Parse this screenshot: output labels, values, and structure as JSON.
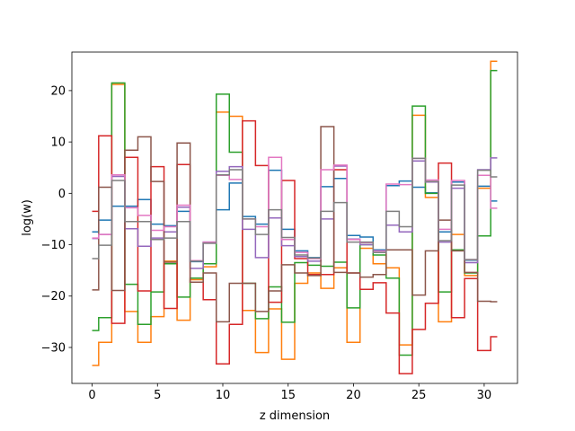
{
  "chart_data": {
    "type": "line",
    "style": "step",
    "xlabel": "z dimension",
    "ylabel": "log(w)",
    "xlim": [
      -1.55,
      32.55
    ],
    "ylim": [
      -37.0,
      27.5
    ],
    "xticks": [
      0,
      5,
      10,
      15,
      20,
      25,
      30
    ],
    "yticks": [
      -30,
      -20,
      -10,
      0,
      10,
      20
    ],
    "grid": false,
    "legend": "none",
    "x": [
      0,
      1,
      2,
      3,
      4,
      5,
      6,
      7,
      8,
      9,
      10,
      11,
      12,
      13,
      14,
      15,
      16,
      17,
      18,
      19,
      20,
      21,
      22,
      23,
      24,
      25,
      26,
      27,
      28,
      29,
      30,
      31
    ],
    "series": [
      {
        "color": "#1f77b4",
        "values": [
          -7.5,
          -5.2,
          -2.5,
          -2.5,
          -1.2,
          -6.0,
          -6.3,
          -3.5,
          -13.3,
          -9.5,
          -3.2,
          2.0,
          -4.5,
          -6.0,
          4.5,
          -7.0,
          -11.2,
          -12.5,
          1.3,
          2.9,
          -8.2,
          -8.5,
          -11.0,
          1.5,
          2.4,
          1.2,
          0.1,
          -7.5,
          2.2,
          -13.0,
          1.4,
          -1.5
        ]
      },
      {
        "color": "#ff7f0e",
        "values": [
          -33.5,
          -29.0,
          21.2,
          -23.0,
          -29.0,
          -24.0,
          -13.2,
          -24.7,
          -16.8,
          -14.3,
          15.8,
          15.0,
          -22.8,
          -31.0,
          -22.5,
          -32.3,
          -17.5,
          -15.5,
          -18.5,
          -14.5,
          -29.0,
          -10.7,
          -13.7,
          -14.5,
          -29.5,
          15.2,
          -0.8,
          -25.0,
          -8.0,
          -16.0,
          1.0,
          25.7
        ]
      },
      {
        "color": "#2ca02c",
        "values": [
          -26.7,
          -24.2,
          21.5,
          -17.7,
          -25.5,
          -19.2,
          -13.7,
          -20.2,
          -16.5,
          -13.7,
          19.3,
          8.0,
          -17.5,
          -24.4,
          -18.2,
          -25.1,
          -13.5,
          -14.0,
          -14.2,
          -13.4,
          -22.3,
          -10.0,
          -12.0,
          -16.5,
          -31.5,
          17.0,
          0.0,
          -19.2,
          -11.0,
          -15.5,
          -8.3,
          23.9
        ]
      },
      {
        "color": "#d62728",
        "values": [
          -3.5,
          11.2,
          -25.3,
          7.0,
          -19.0,
          5.2,
          -22.4,
          5.6,
          -17.3,
          -20.7,
          -33.2,
          -25.5,
          14.1,
          5.4,
          -21.2,
          2.5,
          -12.7,
          -15.8,
          -15.8,
          4.6,
          -15.5,
          -18.7,
          -17.4,
          -23.3,
          -35.1,
          -26.5,
          -21.4,
          5.9,
          -24.2,
          -16.6,
          -30.6,
          -27.9
        ]
      },
      {
        "color": "#9467bd",
        "values": [
          -8.8,
          -8.0,
          3.3,
          -6.9,
          -10.3,
          -8.7,
          -7.5,
          -2.7,
          -14.6,
          -9.7,
          4.3,
          5.2,
          -7.0,
          -12.5,
          -4.8,
          -10.2,
          -12.3,
          -13.2,
          -5.0,
          5.3,
          -8.9,
          -10.0,
          -11.5,
          -6.2,
          -7.5,
          6.3,
          2.2,
          -9.5,
          1.0,
          -13.5,
          4.6,
          6.9
        ]
      },
      {
        "color": "#8c564b",
        "values": [
          -18.8,
          1.2,
          -18.9,
          8.4,
          11.0,
          2.3,
          -13.4,
          9.8,
          -17.3,
          -15.5,
          -25.0,
          -17.5,
          -17.5,
          -23.0,
          -19.0,
          -13.9,
          -15.5,
          -16.0,
          13.0,
          -15.4,
          -15.5,
          -16.3,
          -15.8,
          -11.0,
          -11.0,
          -19.8,
          -11.2,
          -5.2,
          -11.2,
          -15.4,
          -21.0,
          -21.1
        ]
      },
      {
        "color": "#e377c2",
        "values": [
          -8.7,
          -8.0,
          3.6,
          -2.8,
          -4.3,
          -7.2,
          -6.5,
          -2.3,
          -13.1,
          -9.5,
          3.5,
          2.7,
          -5.0,
          -6.5,
          7.0,
          -9.0,
          -11.5,
          -12.7,
          4.6,
          5.5,
          -9.0,
          -9.6,
          -11.2,
          1.8,
          1.7,
          6.8,
          2.6,
          -7.0,
          2.5,
          -12.9,
          3.5,
          -2.9
        ]
      },
      {
        "color": "#7f7f7f",
        "values": [
          -12.7,
          -10.1,
          2.5,
          -5.5,
          -5.5,
          -9.0,
          -8.7,
          -5.5,
          -13.2,
          -9.7,
          3.6,
          4.6,
          -5.0,
          -8.0,
          -3.2,
          -8.6,
          -12.0,
          -12.6,
          -3.5,
          -1.8,
          -9.5,
          -9.5,
          -11.5,
          -3.5,
          -6.5,
          6.8,
          2.3,
          -9.2,
          1.6,
          -12.9,
          4.5,
          3.2
        ]
      }
    ]
  }
}
